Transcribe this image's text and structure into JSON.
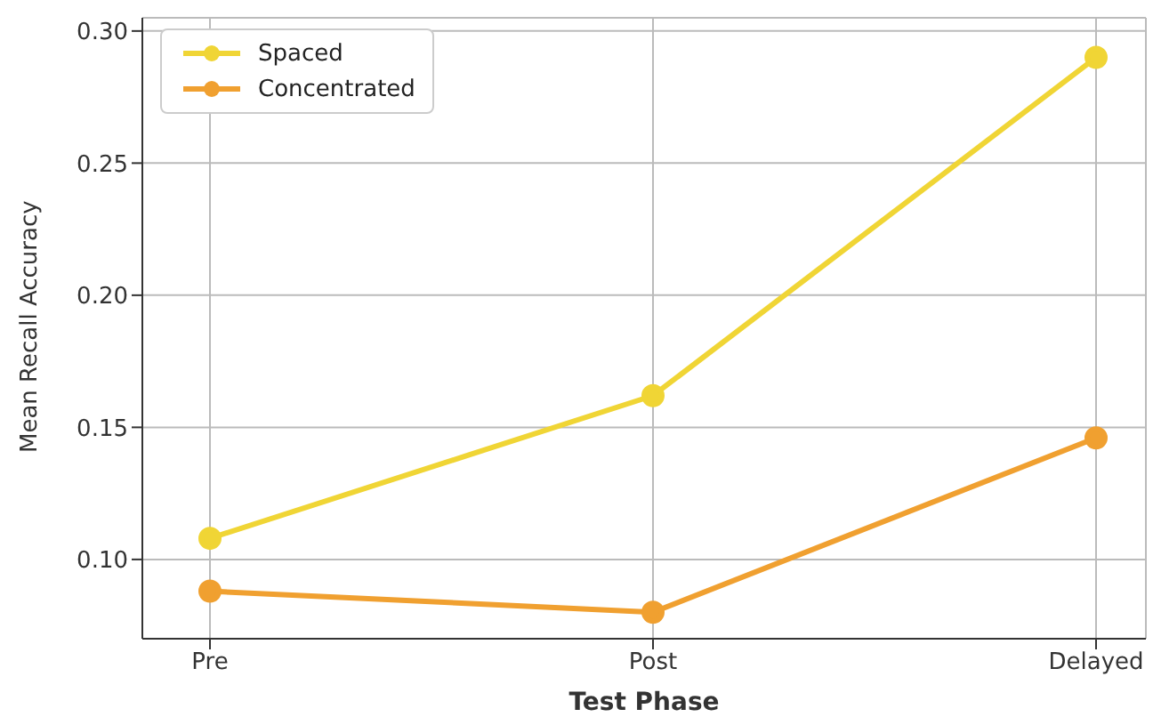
{
  "chart_data": {
    "type": "line",
    "xlabel": "Test Phase",
    "ylabel": "Mean Recall Accuracy",
    "categories": [
      "Pre",
      "Post",
      "Delayed"
    ],
    "series": [
      {
        "name": "Spaced",
        "color": "#f0d535",
        "values": [
          0.108,
          0.162,
          0.29
        ]
      },
      {
        "name": "Concentrated",
        "color": "#f0a030",
        "values": [
          0.088,
          0.08,
          0.146
        ]
      }
    ],
    "ylim": [
      0.07,
      0.305
    ],
    "yticks": [
      {
        "value": 0.1,
        "label": "0.10"
      },
      0.15,
      {
        "value": 0.2,
        "label": "0.20"
      },
      0.25,
      {
        "value": 0.3,
        "label": "0.30"
      }
    ],
    "grid": true,
    "legend": "top left",
    "marker": "circle",
    "line_style": "solid"
  }
}
